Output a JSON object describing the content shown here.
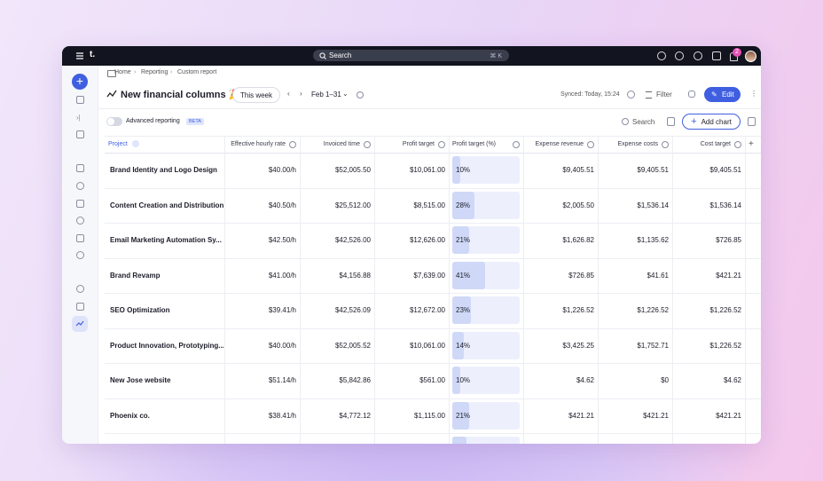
{
  "topbar": {
    "logo": "t.",
    "search": "Search",
    "shortcut": "⌘ K",
    "notifications": 2
  },
  "breadcrumb": [
    "Home",
    "Reporting",
    "Custom report"
  ],
  "header": {
    "title": "New financial columns 🎉",
    "period": "This week",
    "date_range": "Feb 1–31",
    "synced": "Synced: Today, 15:24",
    "filter": "Filter",
    "edit": "Edit"
  },
  "toolbar": {
    "advanced": "Advanced reporting",
    "badge": "BETA",
    "search": "Search",
    "add_chart": "Add chart"
  },
  "table": {
    "columns": [
      "Project",
      "Effective hourly rate",
      "Invoiced time",
      "Profit target",
      "Profit target (%)",
      "Expense revenue",
      "Expense costs",
      "Cost target"
    ],
    "rows": [
      [
        "Brand Identity and Logo Design",
        "$40.00/h",
        "$52,005.50",
        "$10,061.00",
        {
          "value": 10,
          "label": "10%"
        },
        "$9,405.51",
        "$9,405.51",
        "$9,405.51"
      ],
      [
        "Content Creation and Distribution",
        "$40.50/h",
        "$25,512.00",
        "$8,515.00",
        {
          "value": 28,
          "label": "28%"
        },
        "$2,005.50",
        "$1,536.14",
        "$1,536.14"
      ],
      [
        "Email Marketing Automation Sy...",
        "$42.50/h",
        "$42,526.00",
        "$12,626.00",
        {
          "value": 21,
          "label": "21%"
        },
        "$1,626.82",
        "$1,135.62",
        "$726.85"
      ],
      [
        "Brand Revamp",
        "$41.00/h",
        "$4,156.88",
        "$7,639.00",
        {
          "value": 41,
          "label": "41%"
        },
        "$726.85",
        "$41.61",
        "$421.21"
      ],
      [
        "SEO Optimization",
        "$39.41/h",
        "$42,526.09",
        "$12,672.00",
        {
          "value": 23,
          "label": "23%"
        },
        "$1,226.52",
        "$1,226.52",
        "$1,226.52"
      ],
      [
        "Product Innovation, Prototyping...",
        "$40.00/h",
        "$52,005.52",
        "$10,061.00",
        {
          "value": 14,
          "label": "14%"
        },
        "$3,425.25",
        "$1,752.71",
        "$1,226.52"
      ],
      [
        "New Jose website",
        "$51.14/h",
        "$5,842.86",
        "$561.00",
        {
          "value": 10,
          "label": "10%"
        },
        "$4.62",
        "$0",
        "$4.62"
      ],
      [
        "Phoenix co.",
        "$38.41/h",
        "$4,772.12",
        "$1,115.00",
        {
          "value": 21,
          "label": "21%"
        },
        "$421.21",
        "$421.21",
        "$421.21"
      ]
    ]
  }
}
